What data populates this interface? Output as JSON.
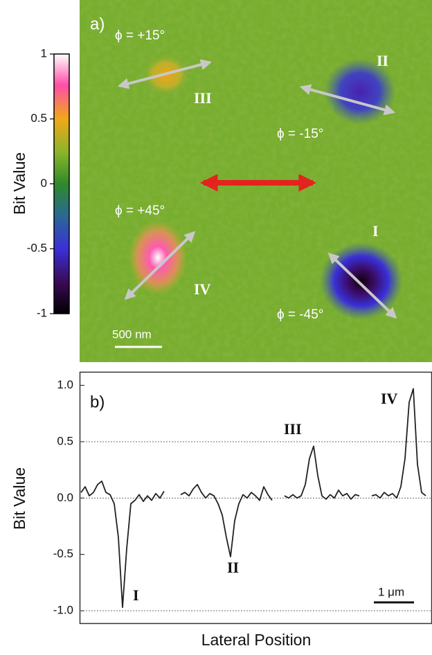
{
  "chart_data": [
    {
      "type": "image",
      "title": "a)",
      "colorbar": {
        "label": "Bit Value",
        "lim": [
          -1,
          1
        ],
        "ticks": [
          1,
          0.5,
          0,
          -0.5,
          -1
        ]
      },
      "annotations": [
        "ϕ = +15°",
        "III",
        "II",
        "ϕ = -15°",
        "ϕ = +45°",
        "IV",
        "I",
        "ϕ = -45°"
      ],
      "scale_bar": "500 nm"
    },
    {
      "type": "line",
      "title": "b)",
      "ylabel": "Bit Value",
      "xlabel": "Lateral Position",
      "ylim": [
        -1.11,
        1.12
      ],
      "yticks": [
        {
          "value": 1,
          "label": "1.0"
        },
        {
          "value": 0.5,
          "label": "0.5"
        },
        {
          "value": 0,
          "label": "0.0"
        },
        {
          "value": -0.5,
          "label": "-0.5"
        },
        {
          "value": -1,
          "label": "-1.0"
        }
      ],
      "reference_lines": [
        0.5,
        0,
        -1
      ],
      "color": "#231f20",
      "values": [
        0.05,
        0.1,
        0.02,
        0.05,
        0.12,
        0.15,
        0.05,
        0.03,
        -0.05,
        -0.35,
        -0.97,
        -0.45,
        -0.05,
        -0.02,
        0.03,
        -0.03,
        0.02,
        -0.02,
        0.04,
        0,
        0.06,
        null,
        null,
        null,
        0.03,
        0.05,
        0.02,
        0.08,
        0.12,
        0.05,
        0,
        0.04,
        0.02,
        -0.05,
        -0.15,
        -0.35,
        -0.52,
        -0.2,
        -0.05,
        0.03,
        0,
        0.05,
        0.02,
        -0.02,
        0.1,
        0.03,
        -0.02,
        null,
        null,
        0.02,
        0,
        0.03,
        0,
        0.02,
        0.12,
        0.35,
        0.46,
        0.2,
        0.02,
        -0.01,
        0.03,
        0,
        0.07,
        0.02,
        0.04,
        -0.01,
        0.03,
        0.02,
        null,
        null,
        0.02,
        0.03,
        0,
        0.05,
        0.02,
        0.04,
        0,
        0.1,
        0.35,
        0.85,
        0.97,
        0.3,
        0.05,
        0.02
      ],
      "annotations": [
        "III",
        "IV",
        "II",
        "I"
      ],
      "scale_bar": "1 μm"
    }
  ]
}
